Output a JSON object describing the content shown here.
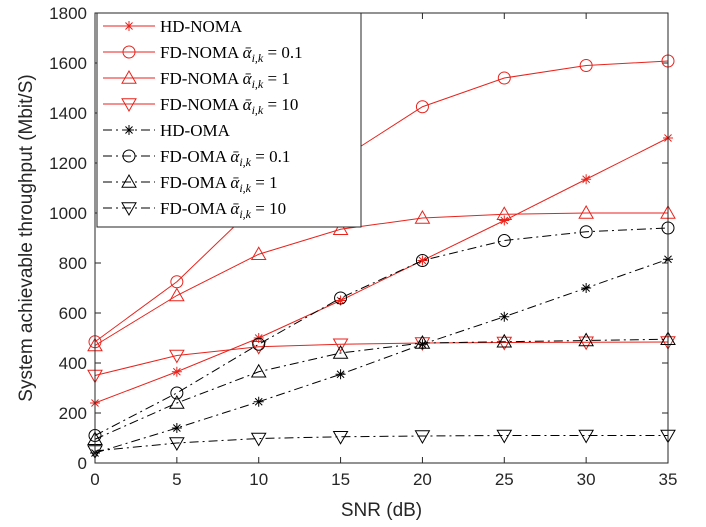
{
  "chart_data": {
    "type": "line",
    "xlabel": "SNR (dB)",
    "ylabel": "System achievable throughput (Mbit/S)",
    "xlim": [
      0,
      35
    ],
    "ylim": [
      0,
      1800
    ],
    "xticks": [
      0,
      5,
      10,
      15,
      20,
      25,
      30,
      35
    ],
    "yticks": [
      0,
      200,
      400,
      600,
      800,
      1000,
      1200,
      1400,
      1600,
      1800
    ],
    "grid": false,
    "legend_position": "top-left",
    "x": [
      0,
      5,
      10,
      15,
      20,
      25,
      30,
      35
    ],
    "series": [
      {
        "name": "HD-NOMA",
        "color": "#e8231c",
        "marker": "star",
        "line": "solid",
        "values": [
          240,
          365,
          500,
          650,
          810,
          970,
          1135,
          1300
        ]
      },
      {
        "name": "FD-NOMA ᾱi,k = 0.1",
        "color": "#e8231c",
        "marker": "circle",
        "line": "solid",
        "values": [
          485,
          725,
          1040,
          1215,
          1425,
          1540,
          1590,
          1608
        ]
      },
      {
        "name": "FD-NOMA ᾱi,k = 1",
        "color": "#e8231c",
        "marker": "triangle-up",
        "line": "solid",
        "values": [
          470,
          670,
          835,
          935,
          980,
          995,
          1000,
          1000
        ]
      },
      {
        "name": "FD-NOMA ᾱi,k = 10",
        "color": "#e8231c",
        "marker": "triangle-down",
        "line": "solid",
        "values": [
          350,
          430,
          465,
          475,
          480,
          482,
          483,
          484
        ]
      },
      {
        "name": "HD-OMA",
        "color": "#000000",
        "marker": "star",
        "line": "dashdot",
        "values": [
          40,
          140,
          245,
          355,
          475,
          585,
          700,
          815
        ]
      },
      {
        "name": "FD-OMA ᾱi,k = 0.1",
        "color": "#000000",
        "marker": "circle",
        "line": "dashdot",
        "values": [
          110,
          280,
          475,
          660,
          810,
          890,
          925,
          940
        ]
      },
      {
        "name": "FD-OMA ᾱi,k = 1",
        "color": "#000000",
        "marker": "triangle-up",
        "line": "dashdot",
        "values": [
          95,
          240,
          365,
          440,
          480,
          485,
          490,
          495
        ]
      },
      {
        "name": "FD-OMA ᾱi,k = 10",
        "color": "#000000",
        "marker": "triangle-down",
        "line": "dashdot",
        "values": [
          48,
          80,
          98,
          105,
          108,
          110,
          110,
          110
        ]
      }
    ],
    "legend": [
      {
        "prefix": "HD-NOMA",
        "symbol": "",
        "sub": "",
        "suffix": ""
      },
      {
        "prefix": "FD-NOMA ",
        "symbol": "ᾱ",
        "sub": "i,k",
        "suffix": " = 0.1"
      },
      {
        "prefix": "FD-NOMA ",
        "symbol": "ᾱ",
        "sub": "i,k",
        "suffix": " = 1"
      },
      {
        "prefix": "FD-NOMA ",
        "symbol": "ᾱ",
        "sub": "i,k",
        "suffix": " = 10"
      },
      {
        "prefix": "HD-OMA",
        "symbol": "",
        "sub": "",
        "suffix": ""
      },
      {
        "prefix": "FD-OMA ",
        "symbol": "ᾱ",
        "sub": "i,k",
        "suffix": " = 0.1"
      },
      {
        "prefix": "FD-OMA ",
        "symbol": "ᾱ",
        "sub": "i,k",
        "suffix": " = 1"
      },
      {
        "prefix": "FD-OMA ",
        "symbol": "ᾱ",
        "sub": "i,k",
        "suffix": " = 10"
      }
    ]
  }
}
